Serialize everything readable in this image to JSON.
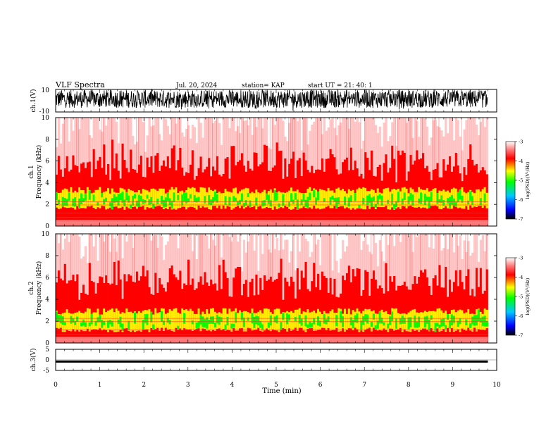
{
  "header": {
    "title": "VLF Spectra",
    "date": "Jul. 20, 2024",
    "station": "station= KAP",
    "start": "start UT =  21: 40: 1"
  },
  "colors": {
    "spec_low": "#ffffff",
    "spec_mid": "#ff0000",
    "spec_high": "#00ff00"
  },
  "chart_data": [
    {
      "id": "ch1-waveform",
      "type": "line",
      "ylabel": "ch.1(V)",
      "ylim": [
        -10,
        10
      ],
      "y_ticks": [
        "10",
        "-10"
      ],
      "xlim": [
        0,
        9.8
      ],
      "description_units": "V",
      "series": [
        {
          "values_range": [
            -10,
            10
          ],
          "typical_band": [
            -6,
            8
          ]
        }
      ]
    },
    {
      "id": "ch1-spectrogram",
      "type": "heatmap",
      "ylabel": "ch.1\nFrequency (kHz)",
      "ylabel_lines": [
        "ch.1",
        "Frequency (kHz)"
      ],
      "ylim": [
        0,
        10
      ],
      "y_ticks": [
        "0",
        "2",
        "4",
        "6",
        "8",
        "10"
      ],
      "xlim": [
        0,
        9.8
      ],
      "colorbar": {
        "label": "log(PSD)(V²/Hz)",
        "range": [
          -7,
          -3
        ],
        "ticks": [
          "-3",
          "-4",
          "-5",
          "-6",
          "-7"
        ]
      },
      "high_band_khz": [
        1.5,
        3.6
      ],
      "active_band_khz": [
        0.5,
        4.6
      ]
    },
    {
      "id": "ch2-spectrogram",
      "type": "heatmap",
      "ylabel": "ch.2\nFrequency (kHz)",
      "ylabel_lines": [
        "ch.2",
        "Frequency (kHz)"
      ],
      "ylim": [
        0,
        10
      ],
      "y_ticks": [
        "0",
        "2",
        "4",
        "6",
        "8",
        "10"
      ],
      "xlim": [
        0,
        9.8
      ],
      "colorbar": {
        "label": "log(PSD)(V²/Hz)",
        "range": [
          -7,
          -3
        ],
        "ticks": [
          "-3",
          "-4",
          "-5",
          "-6",
          "-7"
        ]
      },
      "high_band_khz": [
        1.0,
        3.2
      ],
      "active_band_khz": [
        0.4,
        4.4
      ]
    },
    {
      "id": "ch3-waveform",
      "type": "line",
      "ylabel": "ch.3(V)",
      "ylim": [
        -5,
        5
      ],
      "y_ticks": [
        "5",
        "0",
        "-5"
      ],
      "xlim": [
        0,
        9.8
      ],
      "series": [
        {
          "values_range": [
            -1.3,
            -0.3
          ]
        }
      ]
    }
  ],
  "x_axis": {
    "label": "Time (min)",
    "range": [
      0,
      10
    ],
    "ticks": [
      "0",
      "1",
      "2",
      "3",
      "4",
      "5",
      "6",
      "7",
      "8",
      "9",
      "10"
    ]
  }
}
